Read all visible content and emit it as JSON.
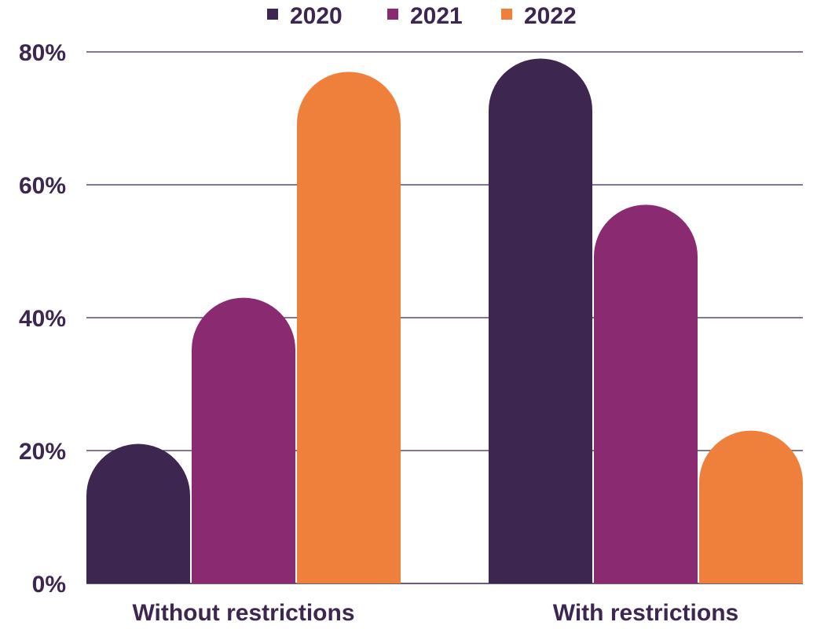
{
  "chart_data": {
    "type": "bar",
    "title": "",
    "xlabel": "",
    "ylabel": "",
    "categories": [
      "Without restrictions",
      "With restrictions"
    ],
    "series": [
      {
        "name": "2020",
        "color": "#3d264f",
        "values": [
          21,
          79
        ]
      },
      {
        "name": "2021",
        "color": "#8a2a70",
        "values": [
          43,
          57
        ]
      },
      {
        "name": "2022",
        "color": "#ef803b",
        "values": [
          77,
          23
        ]
      }
    ],
    "ylim": [
      0,
      80
    ],
    "yticks": [
      0,
      20,
      40,
      60,
      80
    ],
    "ytick_labels": [
      "0%",
      "20%",
      "40%",
      "60%",
      "80%"
    ],
    "grid": true,
    "legend_position": "top-center",
    "text_color": "#3d264f",
    "grid_color": "#3d264f"
  }
}
